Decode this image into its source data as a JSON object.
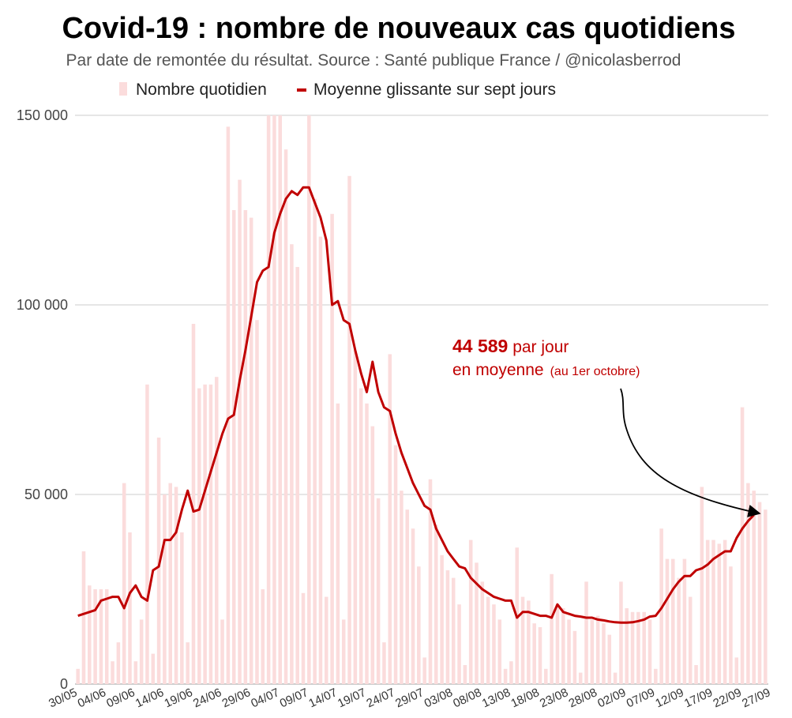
{
  "chart_data": {
    "type": "bar+line",
    "title": "Covid-19 : nombre de nouveaux cas quotidiens",
    "subtitle": "Par date de remontée du résultat. Source : Santé publique France / @nicolasberrod",
    "legend": {
      "bars_label": "Nombre quotidien",
      "line_label": "Moyenne glissante sur sept jours",
      "placement": "top"
    },
    "colors": {
      "bars": "#fbdcdc",
      "line": "#c00000",
      "grid": "#cccccc",
      "arrow": "#000000"
    },
    "ylim": [
      0,
      150000
    ],
    "yticks": [
      0,
      50000,
      100000,
      150000
    ],
    "ytick_labels": [
      "0",
      "50 000",
      "100 000",
      "150 000"
    ],
    "xtick_labels": [
      "30/05",
      "04/06",
      "09/06",
      "14/06",
      "19/06",
      "24/06",
      "29/06",
      "04/07",
      "09/07",
      "14/07",
      "19/07",
      "24/07",
      "29/07",
      "03/08",
      "08/08",
      "13/08",
      "18/08",
      "23/08",
      "28/08",
      "02/09",
      "07/09",
      "12/09",
      "17/09",
      "22/09",
      "27/09"
    ],
    "xtick_every": 5,
    "daily_values": [
      4000,
      35000,
      26000,
      25000,
      25000,
      25000,
      6000,
      11000,
      53000,
      40000,
      6000,
      17000,
      79000,
      8000,
      65000,
      50000,
      53000,
      52000,
      40000,
      11000,
      95000,
      78000,
      79000,
      79000,
      81000,
      17000,
      147000,
      125000,
      133000,
      125000,
      123000,
      96000,
      25000,
      150000,
      150000,
      150000,
      141000,
      116000,
      110000,
      24000,
      150000,
      128000,
      118000,
      23000,
      124000,
      74000,
      17000,
      134000,
      88000,
      78000,
      74000,
      68000,
      49000,
      11000,
      87000,
      63000,
      51000,
      46000,
      41000,
      31000,
      7000,
      54000,
      42000,
      34000,
      30000,
      28000,
      21000,
      5000,
      38000,
      32000,
      27000,
      23000,
      21000,
      17000,
      4000,
      6000,
      36000,
      23000,
      22000,
      16000,
      15000,
      4000,
      29000,
      21000,
      20000,
      17000,
      14000,
      3000,
      27000,
      17000,
      18000,
      16000,
      13000,
      3000,
      27000,
      20000,
      19000,
      19000,
      19000,
      17000,
      4000,
      41000,
      33000,
      33000,
      28000,
      33000,
      23000,
      5000,
      52000,
      38000,
      38000,
      37000,
      38000,
      31000,
      7000,
      73000,
      53000,
      51000,
      48000,
      46000
    ],
    "moving_average": [
      18000,
      18500,
      19000,
      19500,
      22000,
      22500,
      23000,
      23000,
      20000,
      24000,
      26000,
      23000,
      22000,
      30000,
      31000,
      38000,
      38000,
      40000,
      46000,
      51000,
      45500,
      46000,
      51000,
      56000,
      61000,
      66000,
      70000,
      71000,
      80000,
      88000,
      97000,
      106000,
      109000,
      110000,
      119000,
      124000,
      128000,
      130000,
      129000,
      131000,
      131000,
      127000,
      123000,
      117000,
      100000,
      101000,
      96000,
      95000,
      88000,
      82000,
      77000,
      85000,
      77000,
      73000,
      72000,
      66000,
      61000,
      57000,
      53000,
      50000,
      47000,
      46000,
      41000,
      38000,
      35000,
      33000,
      31000,
      30500,
      28000,
      26500,
      25000,
      24000,
      23000,
      22500,
      22000,
      22000,
      17500,
      19000,
      19000,
      18500,
      18000,
      18000,
      17500,
      21000,
      19000,
      18500,
      18000,
      17800,
      17500,
      17500,
      17000,
      16800,
      16500,
      16300,
      16200,
      16200,
      16300,
      16600,
      17000,
      17800,
      18000,
      20000,
      22500,
      25000,
      27000,
      28500,
      28500,
      30000,
      30500,
      31500,
      33000,
      34000,
      35000,
      35000,
      38500,
      41000,
      43000,
      44589
    ]
  },
  "annotation": {
    "value": "44 589",
    "line1_rest": " par jour",
    "line2": "en moyenne",
    "note": "(au 1er octobre)"
  }
}
